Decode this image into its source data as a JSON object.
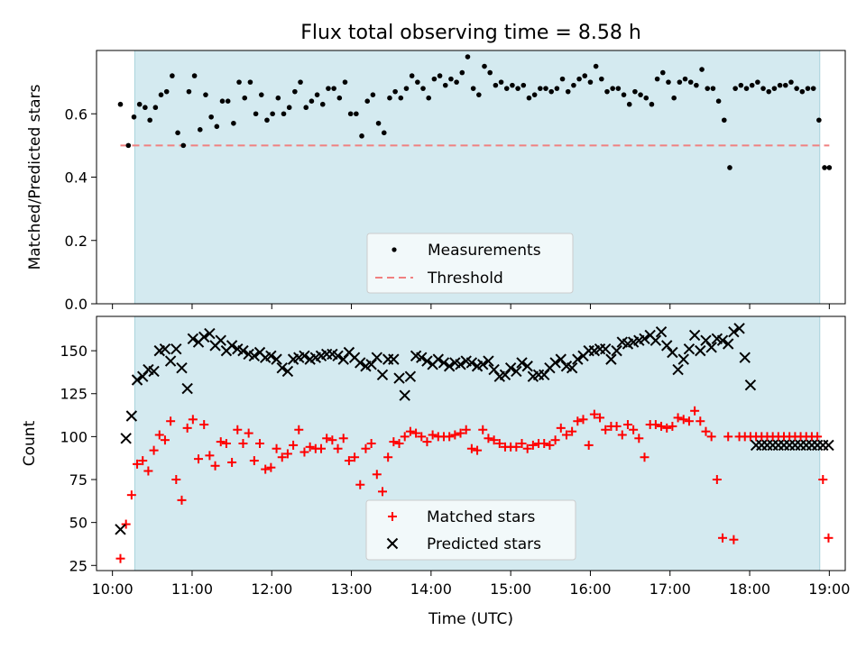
{
  "title": "Flux total observing time = 8.58 h",
  "colors": {
    "shade": "#d4eaf0",
    "threshold": "#f08080",
    "matched": "#ff0000",
    "predicted": "#000000",
    "measurement": "#000000"
  },
  "chart_data": [
    {
      "type": "scatter",
      "panel": "top",
      "ylabel": "Matched/Predicted stars",
      "ylim": [
        0,
        0.8
      ],
      "xlim": [
        9.8,
        19.2
      ],
      "yticks": [
        0.0,
        0.2,
        0.4,
        0.6
      ],
      "ytick_labels": [
        "0.0",
        "0.2",
        "0.4",
        "0.6"
      ],
      "legend": {
        "placement": "bottom-center",
        "entries": [
          "Measurements",
          "Threshold"
        ]
      },
      "shaded_span": [
        10.28,
        18.88
      ],
      "threshold": {
        "name": "Threshold",
        "value": 0.5,
        "x_range": [
          10.1,
          19.0
        ],
        "style": "dashed"
      },
      "series": [
        {
          "name": "Measurements",
          "marker": "dot",
          "x": [
            10.1,
            10.2,
            10.27,
            10.34,
            10.41,
            10.47,
            10.54,
            10.61,
            10.68,
            10.75,
            10.82,
            10.89,
            10.96,
            11.03,
            11.1,
            11.17,
            11.24,
            11.31,
            11.38,
            11.45,
            11.52,
            11.59,
            11.66,
            11.73,
            11.8,
            11.87,
            11.94,
            12.01,
            12.08,
            12.15,
            12.22,
            12.29,
            12.36,
            12.43,
            12.5,
            12.57,
            12.64,
            12.71,
            12.78,
            12.85,
            12.92,
            12.99,
            13.06,
            13.13,
            13.2,
            13.27,
            13.34,
            13.41,
            13.48,
            13.55,
            13.62,
            13.69,
            13.76,
            13.83,
            13.9,
            13.97,
            14.04,
            14.11,
            14.18,
            14.25,
            14.32,
            14.39,
            14.46,
            14.53,
            14.6,
            14.67,
            14.74,
            14.81,
            14.88,
            14.95,
            15.02,
            15.09,
            15.16,
            15.23,
            15.3,
            15.37,
            15.44,
            15.51,
            15.58,
            15.65,
            15.72,
            15.79,
            15.86,
            15.93,
            16.0,
            16.07,
            16.14,
            16.21,
            16.28,
            16.35,
            16.42,
            16.49,
            16.56,
            16.63,
            16.7,
            16.77,
            16.84,
            16.91,
            16.98,
            17.05,
            17.12,
            17.19,
            17.26,
            17.33,
            17.4,
            17.47,
            17.54,
            17.61,
            17.68,
            17.75,
            17.82,
            17.89,
            17.96,
            18.03,
            18.1,
            18.17,
            18.24,
            18.31,
            18.38,
            18.45,
            18.52,
            18.59,
            18.66,
            18.73,
            18.8,
            18.87,
            18.94,
            19.0
          ],
          "y": [
            0.63,
            0.5,
            0.59,
            0.63,
            0.62,
            0.58,
            0.62,
            0.66,
            0.67,
            0.72,
            0.54,
            0.5,
            0.67,
            0.72,
            0.55,
            0.66,
            0.59,
            0.56,
            0.64,
            0.64,
            0.57,
            0.7,
            0.65,
            0.7,
            0.6,
            0.66,
            0.58,
            0.6,
            0.65,
            0.6,
            0.62,
            0.67,
            0.7,
            0.62,
            0.64,
            0.66,
            0.63,
            0.68,
            0.68,
            0.65,
            0.7,
            0.6,
            0.6,
            0.53,
            0.64,
            0.66,
            0.57,
            0.54,
            0.65,
            0.67,
            0.65,
            0.68,
            0.72,
            0.7,
            0.68,
            0.65,
            0.71,
            0.72,
            0.69,
            0.71,
            0.7,
            0.73,
            0.78,
            0.68,
            0.66,
            0.75,
            0.73,
            0.69,
            0.7,
            0.68,
            0.69,
            0.68,
            0.69,
            0.65,
            0.66,
            0.68,
            0.68,
            0.67,
            0.68,
            0.71,
            0.67,
            0.69,
            0.71,
            0.72,
            0.7,
            0.75,
            0.71,
            0.67,
            0.68,
            0.68,
            0.66,
            0.63,
            0.67,
            0.66,
            0.65,
            0.63,
            0.71,
            0.73,
            0.7,
            0.65,
            0.7,
            0.71,
            0.7,
            0.69,
            0.74,
            0.68,
            0.68,
            0.64,
            0.58,
            0.43,
            0.68,
            0.69,
            0.68,
            0.69,
            0.7,
            0.68,
            0.67,
            0.68,
            0.69,
            0.69,
            0.7,
            0.68,
            0.67,
            0.68,
            0.68,
            0.58,
            0.43,
            0.43
          ],
          "color": "#000000"
        }
      ]
    },
    {
      "type": "scatter",
      "panel": "bottom",
      "xlabel": "Time (UTC)",
      "ylabel": "Count",
      "ylim": [
        22,
        170
      ],
      "xlim": [
        9.8,
        19.2
      ],
      "xticks": [
        10,
        11,
        12,
        13,
        14,
        15,
        16,
        17,
        18,
        19
      ],
      "xtick_labels": [
        "10:00",
        "11:00",
        "12:00",
        "13:00",
        "14:00",
        "15:00",
        "16:00",
        "17:00",
        "18:00",
        "19:00"
      ],
      "yticks": [
        25,
        50,
        75,
        100,
        125,
        150
      ],
      "ytick_labels": [
        "25",
        "50",
        "75",
        "100",
        "125",
        "150"
      ],
      "legend": {
        "placement": "bottom-center",
        "entries": [
          "Matched stars",
          "Predicted stars"
        ]
      },
      "shaded_span": [
        10.28,
        18.88
      ],
      "series": [
        {
          "name": "Matched stars",
          "marker": "plus",
          "color": "#ff0000",
          "x": [
            10.1,
            10.17,
            10.24,
            10.31,
            10.38,
            10.45,
            10.52,
            10.59,
            10.66,
            10.73,
            10.8,
            10.87,
            10.94,
            11.01,
            11.08,
            11.15,
            11.22,
            11.29,
            11.36,
            11.43,
            11.5,
            11.57,
            11.64,
            11.71,
            11.78,
            11.85,
            11.92,
            11.99,
            12.06,
            12.13,
            12.2,
            12.27,
            12.34,
            12.41,
            12.48,
            12.55,
            12.62,
            12.69,
            12.76,
            12.83,
            12.9,
            12.97,
            13.04,
            13.11,
            13.18,
            13.25,
            13.32,
            13.39,
            13.46,
            13.53,
            13.6,
            13.67,
            13.74,
            13.81,
            13.88,
            13.95,
            14.02,
            14.09,
            14.16,
            14.23,
            14.3,
            14.37,
            14.44,
            14.51,
            14.58,
            14.65,
            14.72,
            14.79,
            14.86,
            14.93,
            15.0,
            15.07,
            15.14,
            15.21,
            15.28,
            15.35,
            15.42,
            15.49,
            15.56,
            15.63,
            15.7,
            15.77,
            15.84,
            15.91,
            15.98,
            16.05,
            16.12,
            16.19,
            16.26,
            16.33,
            16.4,
            16.47,
            16.54,
            16.61,
            16.68,
            16.75,
            16.82,
            16.89,
            16.96,
            17.03,
            17.1,
            17.17,
            17.24,
            17.31,
            17.38,
            17.45,
            17.52,
            17.59,
            17.66,
            17.73,
            17.8,
            17.87,
            17.94,
            18.01,
            18.08,
            18.15,
            18.22,
            18.29,
            18.36,
            18.43,
            18.5,
            18.57,
            18.64,
            18.71,
            18.78,
            18.85,
            18.92,
            18.99
          ],
          "y": [
            29,
            49,
            66,
            84,
            86,
            80,
            92,
            101,
            98,
            109,
            75,
            63,
            105,
            110,
            87,
            107,
            89,
            83,
            97,
            96,
            85,
            104,
            96,
            102,
            86,
            96,
            81,
            82,
            93,
            88,
            90,
            95,
            104,
            91,
            94,
            93,
            93,
            99,
            98,
            93,
            99,
            86,
            88,
            72,
            93,
            96,
            78,
            68,
            88,
            97,
            96,
            100,
            103,
            102,
            100,
            97,
            101,
            100,
            100,
            100,
            101,
            102,
            104,
            93,
            92,
            104,
            99,
            98,
            96,
            94,
            94,
            94,
            96,
            93,
            95,
            96,
            96,
            95,
            98,
            105,
            101,
            103,
            109,
            110,
            95,
            113,
            111,
            104,
            106,
            106,
            101,
            107,
            104,
            99,
            88,
            107,
            107,
            106,
            105,
            106,
            111,
            110,
            109,
            115,
            109,
            103,
            100,
            75,
            41,
            100,
            40,
            100,
            100,
            100,
            100,
            100,
            100,
            100,
            100,
            100,
            100,
            100,
            100,
            100,
            100,
            100,
            75,
            41
          ]
        },
        {
          "name": "Predicted stars",
          "marker": "x",
          "color": "#000000",
          "x": [
            10.1,
            10.17,
            10.24,
            10.31,
            10.38,
            10.45,
            10.52,
            10.59,
            10.66,
            10.73,
            10.8,
            10.87,
            10.94,
            11.01,
            11.08,
            11.15,
            11.22,
            11.29,
            11.36,
            11.43,
            11.5,
            11.57,
            11.64,
            11.71,
            11.78,
            11.85,
            11.92,
            11.99,
            12.06,
            12.13,
            12.2,
            12.27,
            12.34,
            12.41,
            12.48,
            12.55,
            12.62,
            12.69,
            12.76,
            12.83,
            12.9,
            12.97,
            13.04,
            13.11,
            13.18,
            13.25,
            13.32,
            13.39,
            13.46,
            13.53,
            13.6,
            13.67,
            13.74,
            13.81,
            13.88,
            13.95,
            14.02,
            14.09,
            14.16,
            14.23,
            14.3,
            14.37,
            14.44,
            14.51,
            14.58,
            14.65,
            14.72,
            14.79,
            14.86,
            14.93,
            15.0,
            15.07,
            15.14,
            15.21,
            15.28,
            15.35,
            15.42,
            15.49,
            15.56,
            15.63,
            15.7,
            15.77,
            15.84,
            15.91,
            15.98,
            16.05,
            16.12,
            16.19,
            16.26,
            16.33,
            16.4,
            16.47,
            16.54,
            16.61,
            16.68,
            16.75,
            16.82,
            16.89,
            16.96,
            17.03,
            17.1,
            17.17,
            17.24,
            17.31,
            17.38,
            17.45,
            17.52,
            17.59,
            17.66,
            17.73,
            17.8,
            17.87,
            17.94,
            18.01,
            18.08,
            18.15,
            18.22,
            18.29,
            18.36,
            18.43,
            18.5,
            18.57,
            18.64,
            18.71,
            18.78,
            18.85,
            18.92,
            18.99
          ],
          "y": [
            46,
            99,
            112,
            133,
            135,
            139,
            138,
            150,
            151,
            144,
            151,
            140,
            128,
            157,
            155,
            158,
            160,
            153,
            156,
            150,
            153,
            151,
            150,
            148,
            147,
            149,
            146,
            147,
            145,
            140,
            138,
            145,
            146,
            147,
            145,
            146,
            147,
            148,
            148,
            147,
            145,
            149,
            146,
            143,
            141,
            142,
            146,
            136,
            145,
            145,
            134,
            124,
            135,
            147,
            146,
            144,
            142,
            145,
            143,
            141,
            143,
            142,
            144,
            143,
            141,
            142,
            144,
            139,
            135,
            136,
            140,
            138,
            143,
            141,
            135,
            136,
            136,
            140,
            143,
            145,
            141,
            140,
            145,
            147,
            150,
            150,
            151,
            151,
            145,
            150,
            155,
            154,
            155,
            156,
            157,
            159,
            156,
            161,
            153,
            149,
            139,
            145,
            151,
            159,
            150,
            156,
            152,
            157,
            156,
            154,
            161,
            163,
            146,
            130,
            95,
            95,
            95,
            95,
            95,
            95,
            95,
            95,
            95,
            95,
            95,
            95,
            95,
            95
          ]
        }
      ]
    }
  ]
}
